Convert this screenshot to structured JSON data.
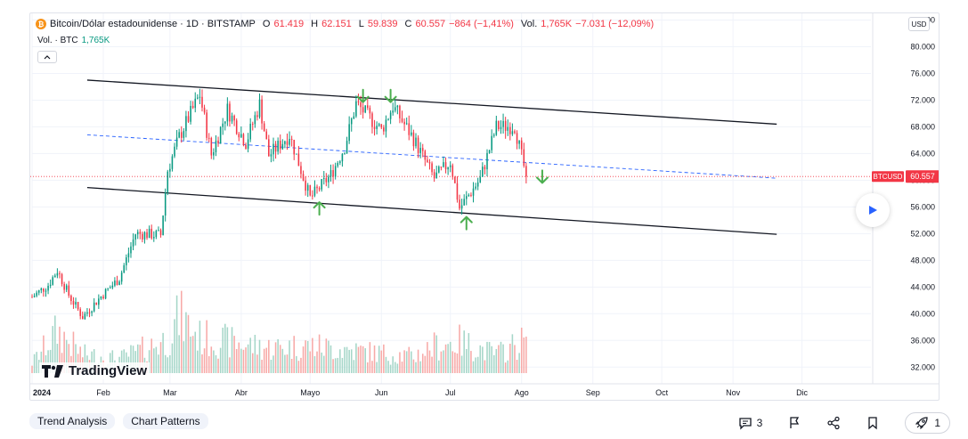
{
  "header": {
    "symbol": "Bitcoin/Dólar estadounidense · 1D · BITSTAMP",
    "open_label": "O",
    "open": "61.419",
    "high_label": "H",
    "high": "62.151",
    "low_label": "L",
    "low": "59.839",
    "close_label": "C",
    "close": "60.557",
    "change": "−864 (−1,41%)",
    "vol_label": "Vol.",
    "vol": "1,765K",
    "vol_change": "−7.031 (−12,09%)"
  },
  "volume_line": {
    "label": "Vol. · BTC",
    "value": "1,765K"
  },
  "currency_button": "USD",
  "price_tag": {
    "symbol": "BTCUSD",
    "value": "60.557"
  },
  "logo_text": "TradingView",
  "tags": [
    "Trend Analysis",
    "Chart Patterns"
  ],
  "actions": {
    "comments": "3",
    "boosts": "1"
  },
  "icons": {
    "logo": "bitcoin-icon",
    "collapse": "chevron-up-icon",
    "play": "play-icon",
    "comments": "comment-icon",
    "flag": "flag-icon",
    "share": "share-icon",
    "bookmark": "bookmark-icon",
    "boost": "rocket-icon"
  },
  "colors": {
    "up": "#089981",
    "down": "#f23645",
    "arrows": "#4caf50",
    "trend_mid": "#2962ff",
    "price_line": "#f23645",
    "vol_up": "#a5d6c8",
    "vol_down": "#f7a9a7"
  },
  "chart_data": {
    "type": "candlestick",
    "y_axis_labels": [
      "84.000",
      "80.000",
      "76.000",
      "72.000",
      "68.000",
      "64.000",
      "60.000",
      "56.000",
      "52.000",
      "48.000",
      "44.000",
      "40.000",
      "36.000",
      "32.000"
    ],
    "x_axis_labels": [
      "2024",
      "Feb",
      "Mar",
      "Abr",
      "Mayo",
      "Jun",
      "Jul",
      "Ago",
      "Sep",
      "Oct",
      "Nov",
      "Dic"
    ],
    "ylim": [
      29500,
      85000
    ],
    "x_range": [
      "2024-01-01",
      "2024-12-31"
    ],
    "price_path": [
      [
        "2024-01-01",
        42500
      ],
      [
        "2024-01-08",
        44300
      ],
      [
        "2024-01-12",
        46500
      ],
      [
        "2024-01-17",
        42800
      ],
      [
        "2024-01-23",
        39500
      ],
      [
        "2024-01-31",
        42600
      ],
      [
        "2024-02-08",
        45300
      ],
      [
        "2024-02-15",
        52000
      ],
      [
        "2024-02-26",
        51800
      ],
      [
        "2024-02-29",
        61500
      ],
      [
        "2024-03-05",
        66500
      ],
      [
        "2024-03-14",
        72800
      ],
      [
        "2024-03-19",
        63800
      ],
      [
        "2024-03-26",
        70600
      ],
      [
        "2024-04-03",
        65600
      ],
      [
        "2024-04-09",
        71400
      ],
      [
        "2024-04-13",
        63700
      ],
      [
        "2024-04-22",
        66800
      ],
      [
        "2024-05-01",
        57300
      ],
      [
        "2024-05-10",
        60800
      ],
      [
        "2024-05-16",
        65000
      ],
      [
        "2024-05-21",
        71500
      ],
      [
        "2024-06-01",
        67500
      ],
      [
        "2024-06-06",
        71100
      ],
      [
        "2024-06-15",
        66200
      ],
      [
        "2024-06-24",
        60300
      ],
      [
        "2024-07-01",
        62800
      ],
      [
        "2024-07-05",
        55800
      ],
      [
        "2024-07-14",
        60200
      ],
      [
        "2024-07-21",
        68000
      ],
      [
        "2024-07-29",
        68100
      ],
      [
        "2024-08-03",
        60557
      ]
    ],
    "volume_path": [
      [
        "2024-01-01",
        5000
      ],
      [
        "2024-01-12",
        20000
      ],
      [
        "2024-01-23",
        9000
      ],
      [
        "2024-02-08",
        7000
      ],
      [
        "2024-02-29",
        16000
      ],
      [
        "2024-03-05",
        27000
      ],
      [
        "2024-03-14",
        17000
      ],
      [
        "2024-04-13",
        12000
      ],
      [
        "2024-05-01",
        13000
      ],
      [
        "2024-06-15",
        8000
      ],
      [
        "2024-06-24",
        13000
      ],
      [
        "2024-07-05",
        15000
      ],
      [
        "2024-07-21",
        9000
      ],
      [
        "2024-08-03",
        16000
      ]
    ],
    "trendlines": [
      {
        "name": "upper-channel",
        "from": [
          "2024-01-25",
          75000
        ],
        "to": [
          "2024-11-20",
          68400
        ]
      },
      {
        "name": "lower-channel",
        "from": [
          "2024-01-25",
          58900
        ],
        "to": [
          "2024-11-20",
          51900
        ]
      },
      {
        "name": "mid-channel",
        "from": [
          "2024-01-25",
          66800
        ],
        "to": [
          "2024-11-20",
          60300
        ]
      }
    ],
    "arrows": [
      {
        "date": "2024-05-24",
        "price": 71700,
        "direction": "down"
      },
      {
        "date": "2024-06-05",
        "price": 71700,
        "direction": "down"
      },
      {
        "date": "2024-08-10",
        "price": 59600,
        "direction": "down"
      },
      {
        "date": "2024-05-05",
        "price": 56700,
        "direction": "up"
      },
      {
        "date": "2024-07-08",
        "price": 54500,
        "direction": "up"
      }
    ],
    "last_price": 60557
  }
}
